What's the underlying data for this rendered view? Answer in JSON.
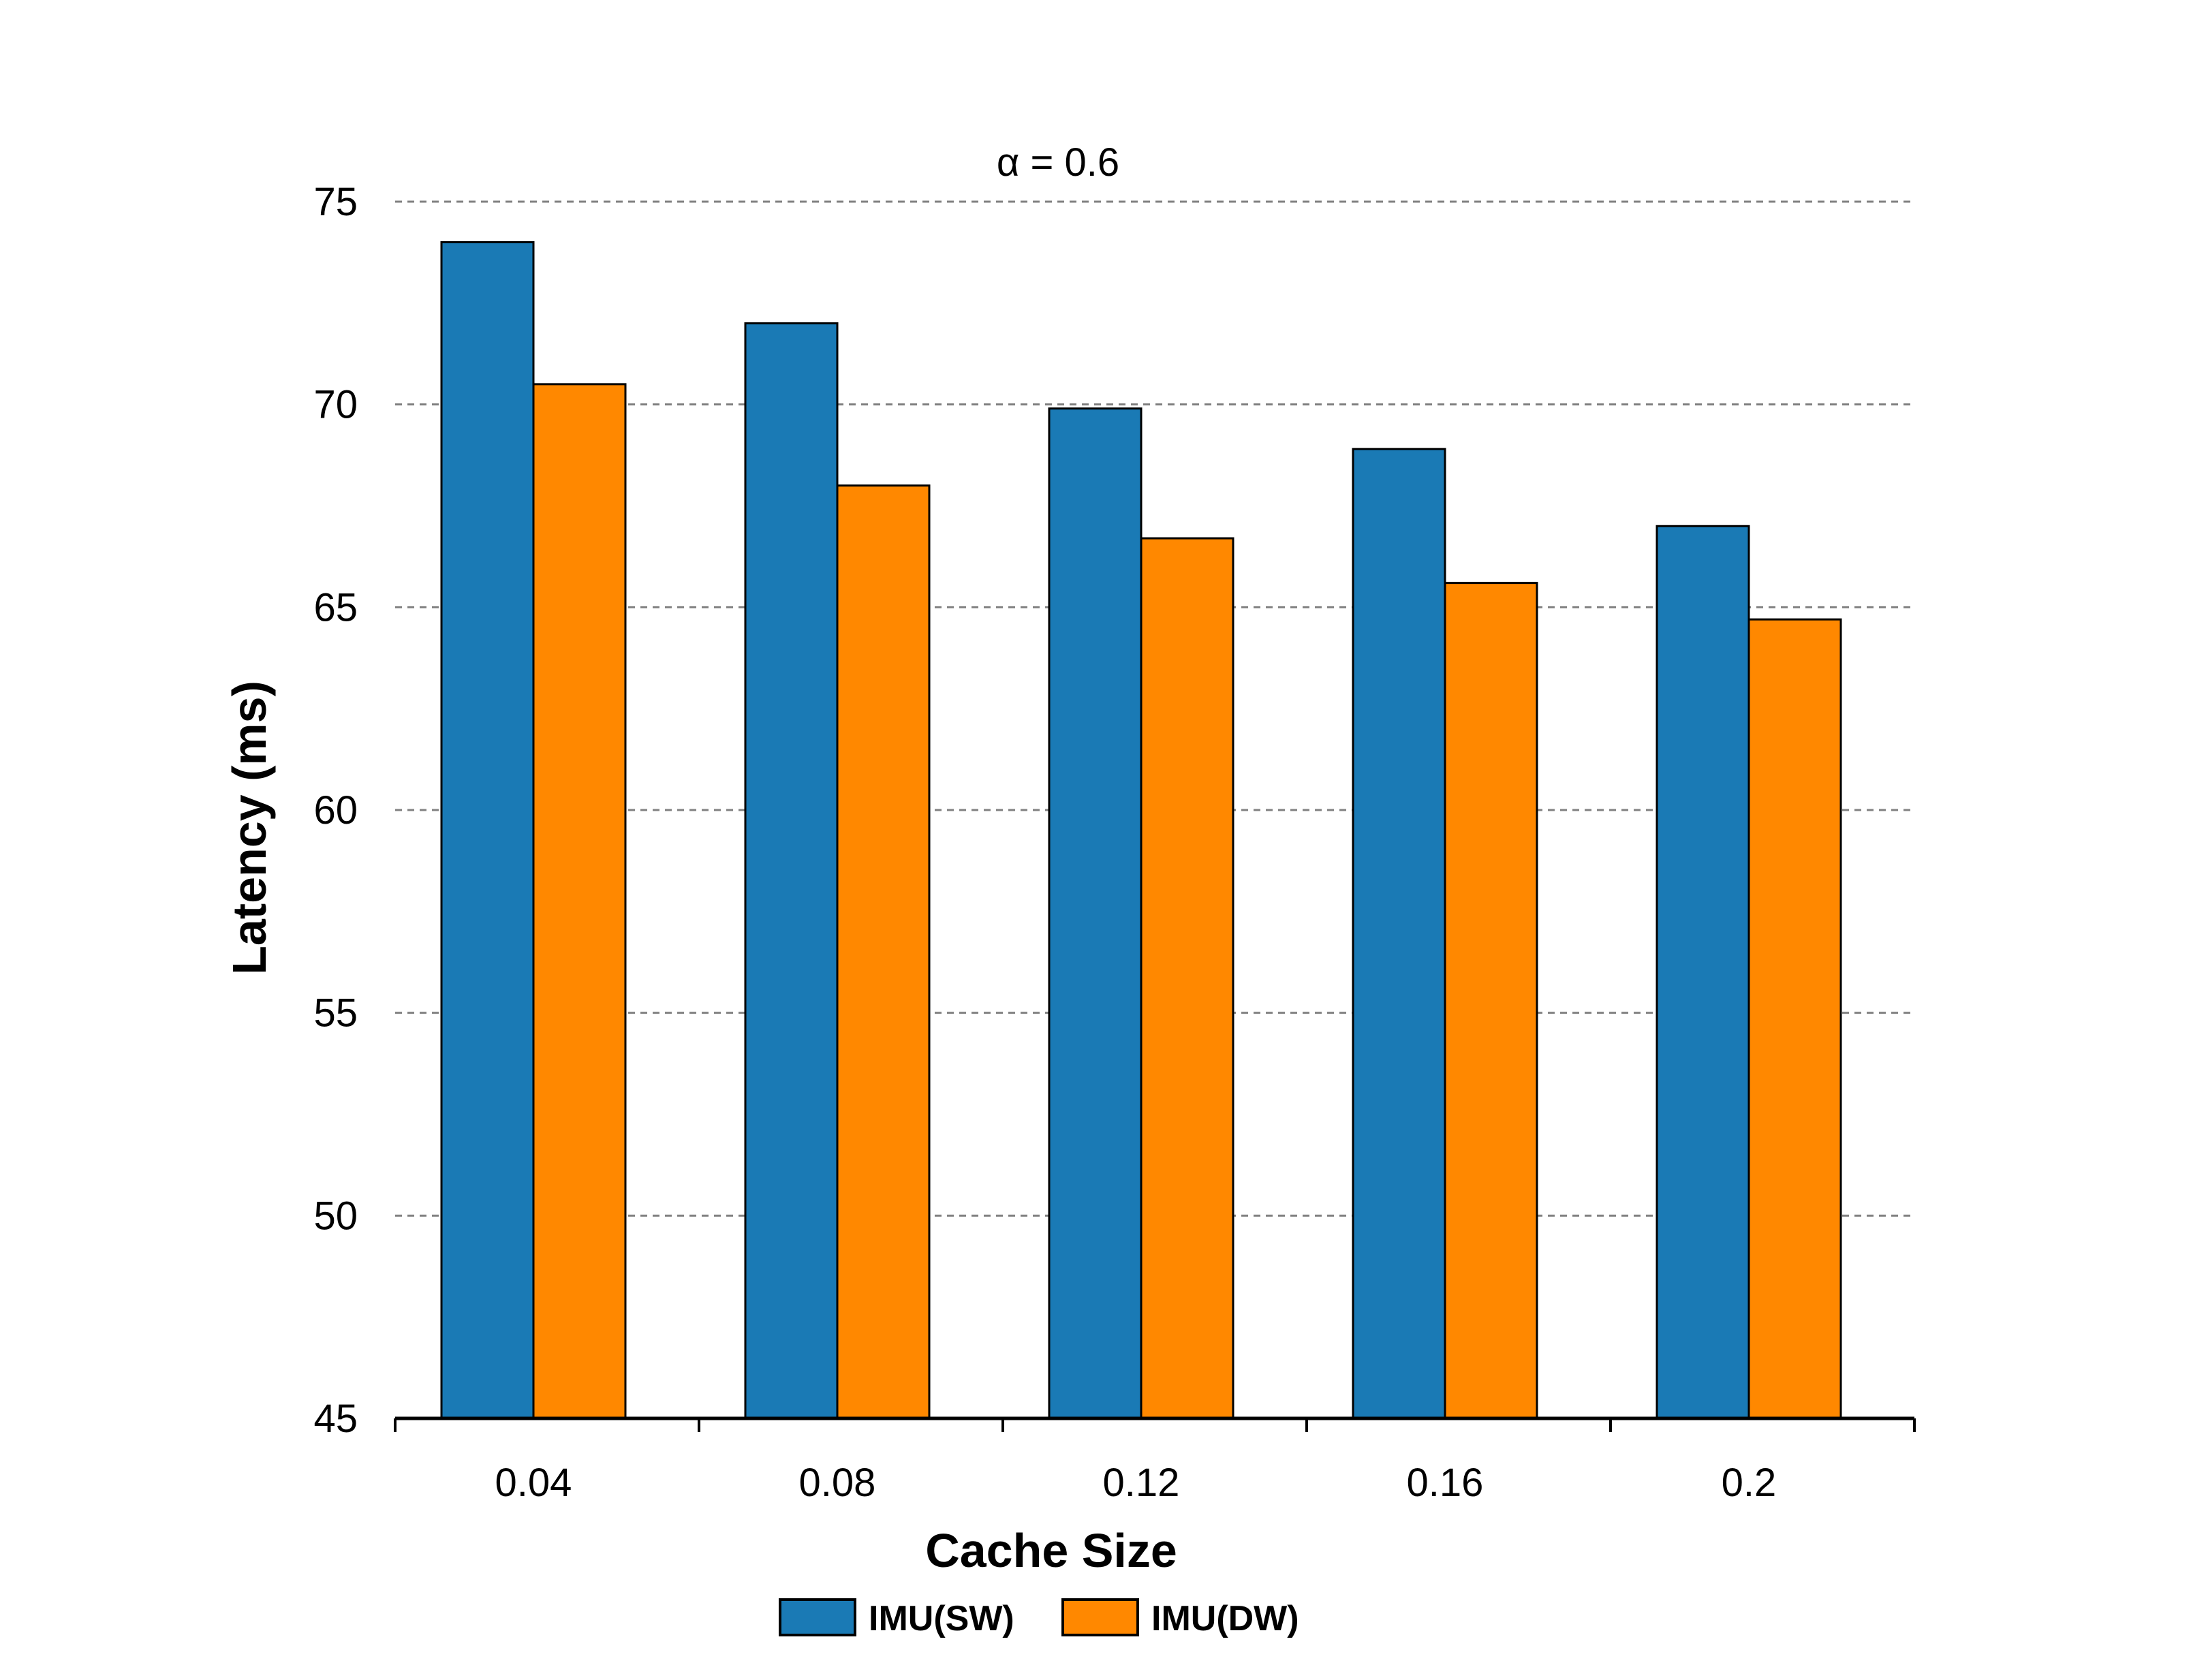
{
  "chart_data": {
    "type": "bar",
    "title": "α = 0.6",
    "xlabel": "Cache Size",
    "ylabel": "Latency (ms)",
    "categories": [
      "0.04",
      "0.08",
      "0.12",
      "0.16",
      "0.2"
    ],
    "series": [
      {
        "name": "IMU(SW)",
        "color": "#1a7ab5",
        "values": [
          74.0,
          72.0,
          69.9,
          68.9,
          67.0
        ]
      },
      {
        "name": "IMU(DW)",
        "color": "#ff8800",
        "values": [
          70.5,
          68.0,
          66.7,
          65.6,
          64.7
        ]
      }
    ],
    "ylim": [
      45,
      75
    ],
    "yticks": [
      "45",
      "50",
      "55",
      "60",
      "65",
      "70",
      "75"
    ],
    "grid": true,
    "legend_position": "bottom-center"
  }
}
